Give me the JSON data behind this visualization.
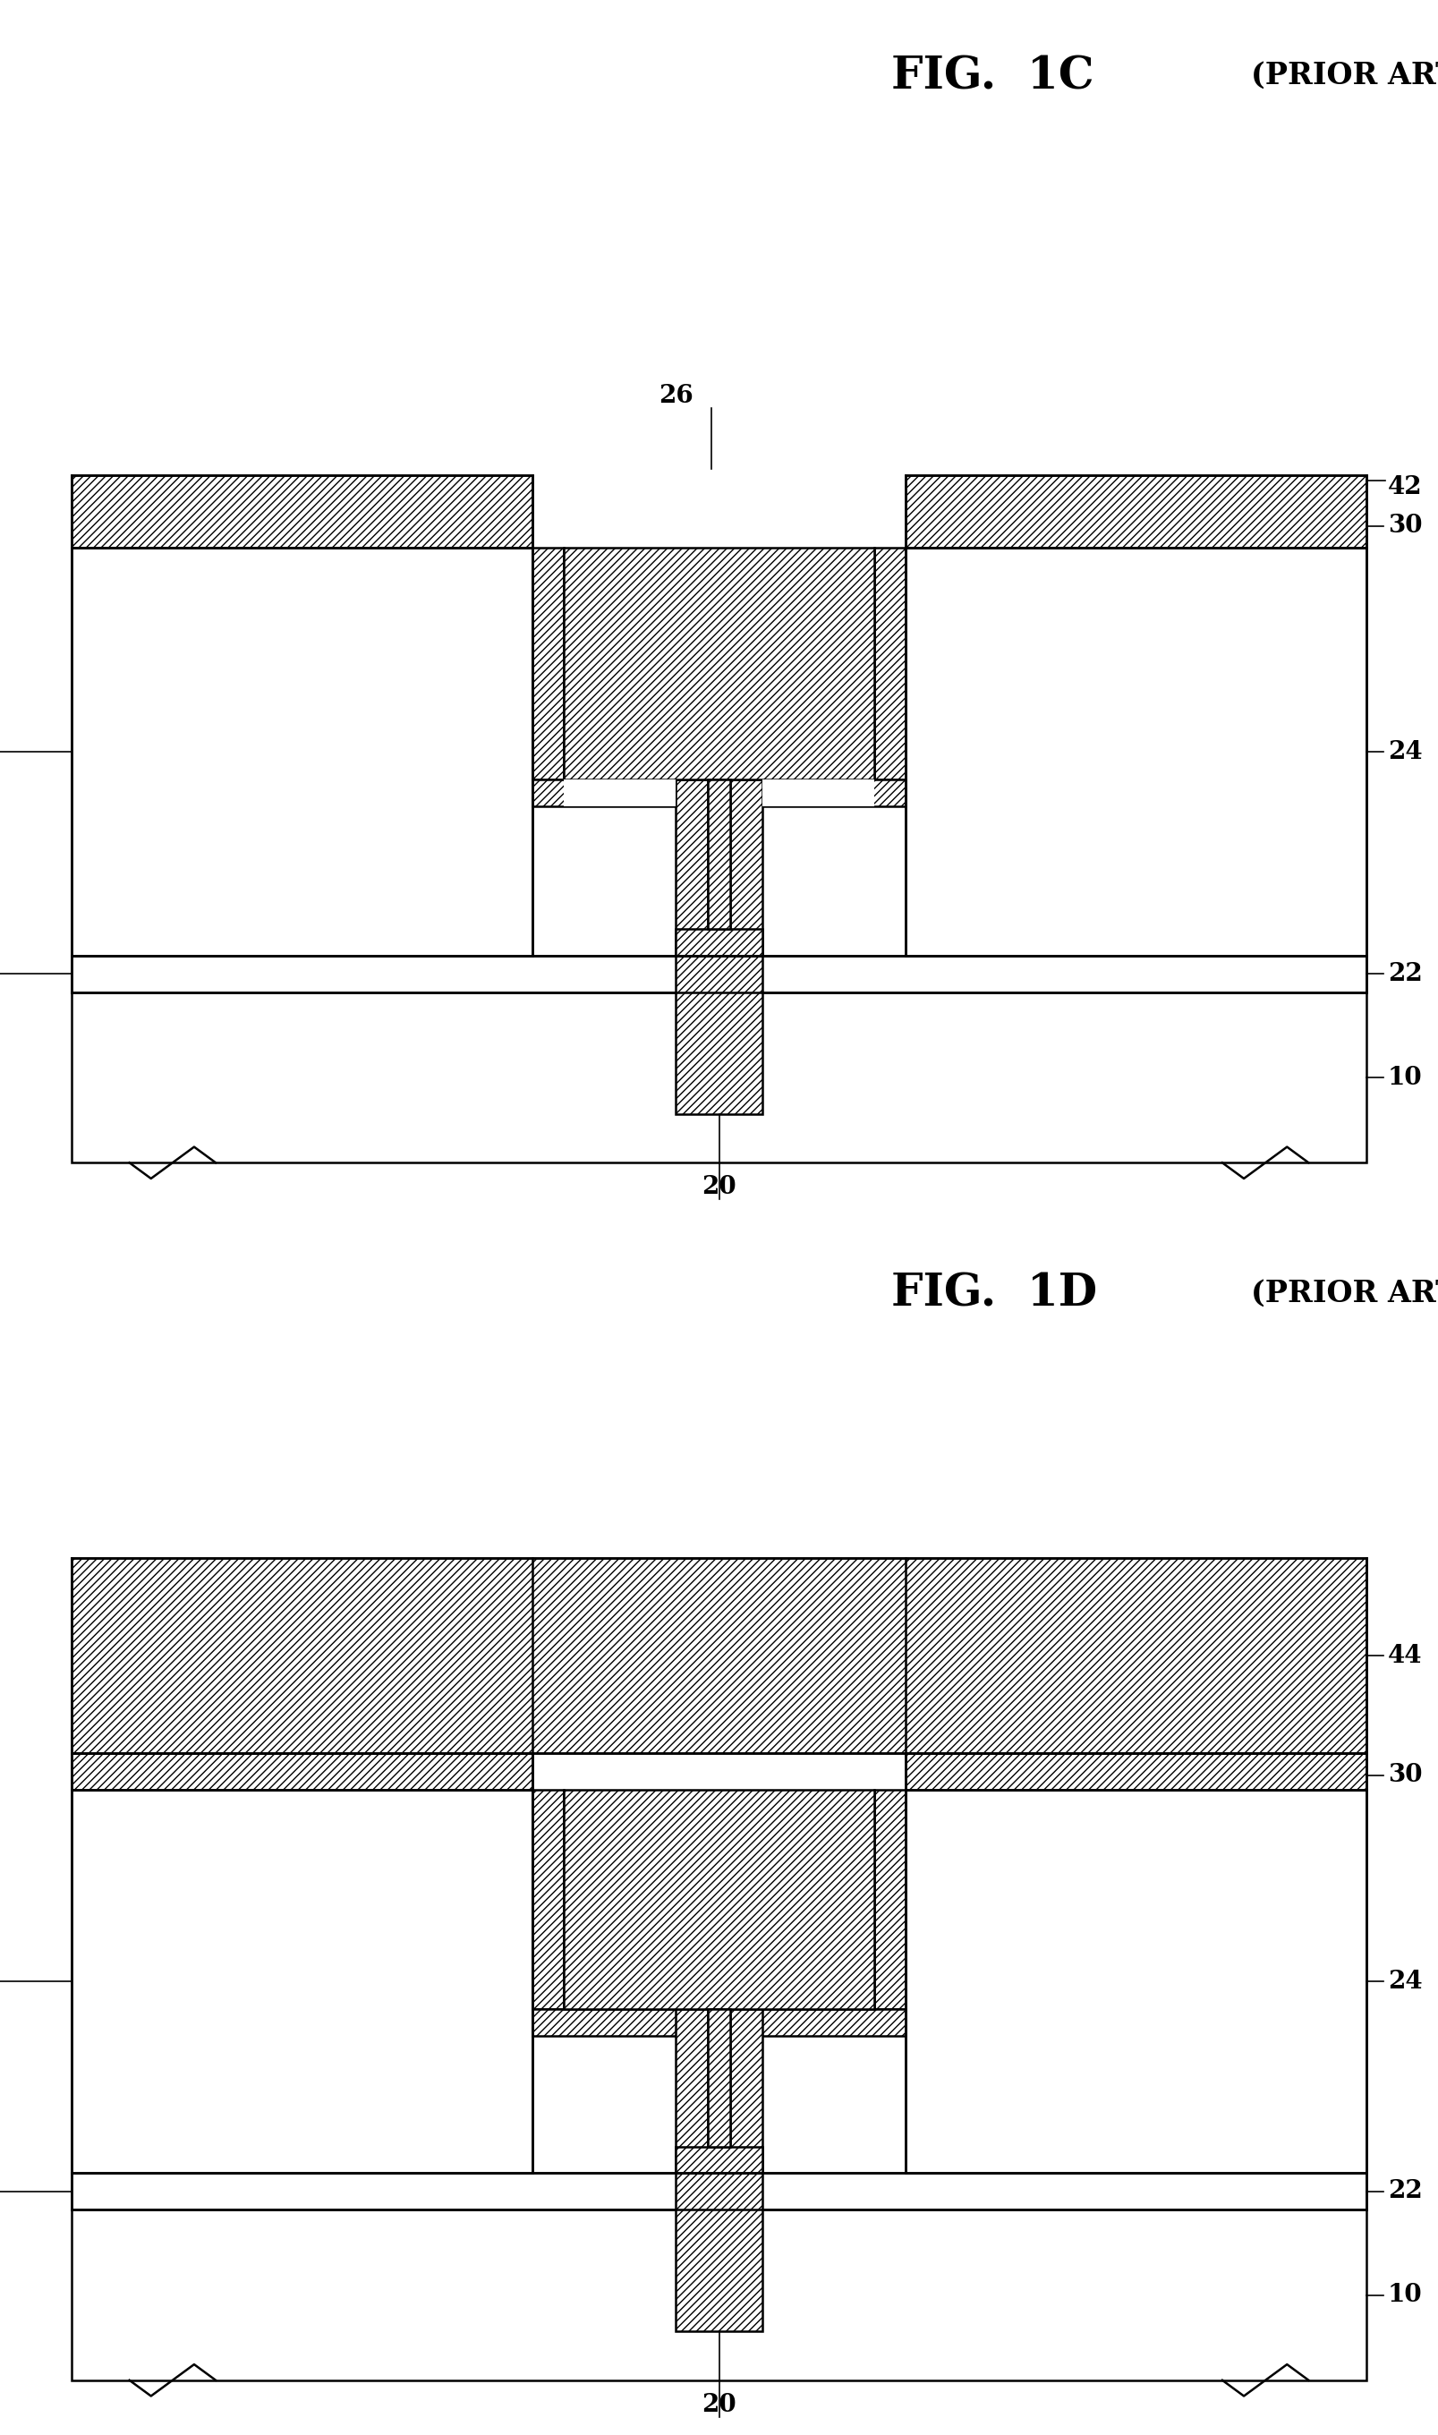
{
  "fig_width": 16.07,
  "fig_height": 27.21,
  "bg_color": "#ffffff",
  "lw": 1.8,
  "hatch": "////",
  "fs_title_big": 36,
  "fs_title_small": 24,
  "fs_label": 20,
  "title1_main": "FIG.  1C",
  "title1_sub": "(PRIOR ART)",
  "title2_main": "FIG.  1D",
  "title2_sub": "(PRIOR ART)"
}
